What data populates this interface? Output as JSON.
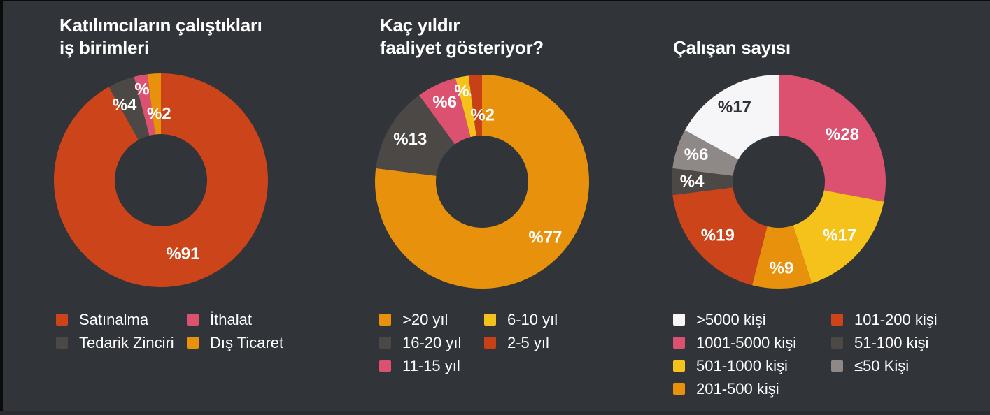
{
  "background_color": "#313439",
  "text_color": "#ffffff",
  "chart_data": [
    {
      "id": "business-units",
      "type": "pie",
      "donut": true,
      "title": "Katılımcıların çalıştıkları\niş birimleri",
      "start_angle": 0,
      "legend_position": "bottom",
      "slices": [
        {
          "name": "Satınalma",
          "value": 91,
          "display": "%91",
          "color": "#cc4419",
          "label_r": 0.72,
          "label_da": -2
        },
        {
          "name": "Tedarik Zinciri",
          "value": 4,
          "display": "%4",
          "color": "#4c4846",
          "label_r": 0.78,
          "label_da": -4
        },
        {
          "name": "İthalat",
          "value": 2,
          "display": "%2",
          "color": "#dc5170",
          "label_r": 0.86,
          "label_da": 2
        },
        {
          "name": "Dış Ticaret",
          "value": 2,
          "display": "%2",
          "color": "#e8910c",
          "label_r": 0.62,
          "label_da": 2
        }
      ],
      "legend_columns": [
        [
          "Satınalma",
          "Tedarik Zinciri"
        ],
        [
          "İthalat",
          "Dış Ticaret"
        ]
      ]
    },
    {
      "id": "years-active",
      "type": "pie",
      "donut": true,
      "title": "Kaç yıldır\nfaaliyet gösteriyor?",
      "start_angle": 0,
      "legend_position": "bottom",
      "slices": [
        {
          "name": ">20 yıl",
          "value": 77,
          "display": "%77",
          "color": "#e8910c",
          "label_r": 0.79,
          "label_da": -7
        },
        {
          "name": "16-20 yıl",
          "value": 13,
          "display": "%13",
          "color": "#4c4846",
          "label_r": 0.78,
          "label_da": 0
        },
        {
          "name": "11-15 yıl",
          "value": 6,
          "display": "%6",
          "color": "#dc5170",
          "label_r": 0.82,
          "label_da": 0
        },
        {
          "name": "6-10 yıl",
          "value": 2,
          "display": "%2",
          "color": "#f5c11b",
          "label_r": 0.86,
          "label_da": 1
        },
        {
          "name": "2-5 yıl",
          "value": 2,
          "display": "%2",
          "color": "#c84016",
          "label_r": 0.62,
          "label_da": 4
        }
      ],
      "legend_columns": [
        [
          ">20 yıl",
          "16-20 yıl",
          "11-15 yıl"
        ],
        [
          "6-10 yıl",
          "2-5 yıl"
        ]
      ]
    },
    {
      "id": "employee-count",
      "type": "pie",
      "donut": true,
      "title": "Çalışan sayısı",
      "start_angle": 0,
      "legend_position": "bottom",
      "slices": [
        {
          "name": "1001-5000 kişi",
          "value": 28,
          "display": "%28",
          "color": "#dc5170",
          "label_r": 0.74,
          "label_da": 3
        },
        {
          "name": "501-1000 kişi",
          "value": 17,
          "display": "%17",
          "color": "#f5c11b",
          "label_r": 0.76,
          "label_da": 0
        },
        {
          "name": "201-500 kişi",
          "value": 9,
          "display": "%9",
          "color": "#e8910c",
          "label_r": 0.81,
          "label_da": 0
        },
        {
          "name": "101-200 kişi",
          "value": 19,
          "display": "%19",
          "color": "#cc4419",
          "label_r": 0.76,
          "label_da": 0
        },
        {
          "name": "51-100 kişi",
          "value": 4,
          "display": "%4",
          "color": "#4c4846",
          "label_r": 0.81,
          "label_da": 0
        },
        {
          "name": "≤50 Kişi",
          "value": 6,
          "display": "%6",
          "color": "#8e8987",
          "label_r": 0.81,
          "label_da": 0
        },
        {
          "name": ">5000 kişi",
          "value": 17,
          "display": "%17",
          "color": "#f6f5f8",
          "label_color": "#2f3237",
          "label_r": 0.81,
          "label_da": 0
        }
      ],
      "legend_columns": [
        [
          ">5000 kişi",
          "1001-5000 kişi",
          "501-1000 kişi",
          "201-500 kişi"
        ],
        [
          "101-200 kişi",
          "51-100 kişi",
          "≤50 Kişi"
        ]
      ]
    }
  ]
}
